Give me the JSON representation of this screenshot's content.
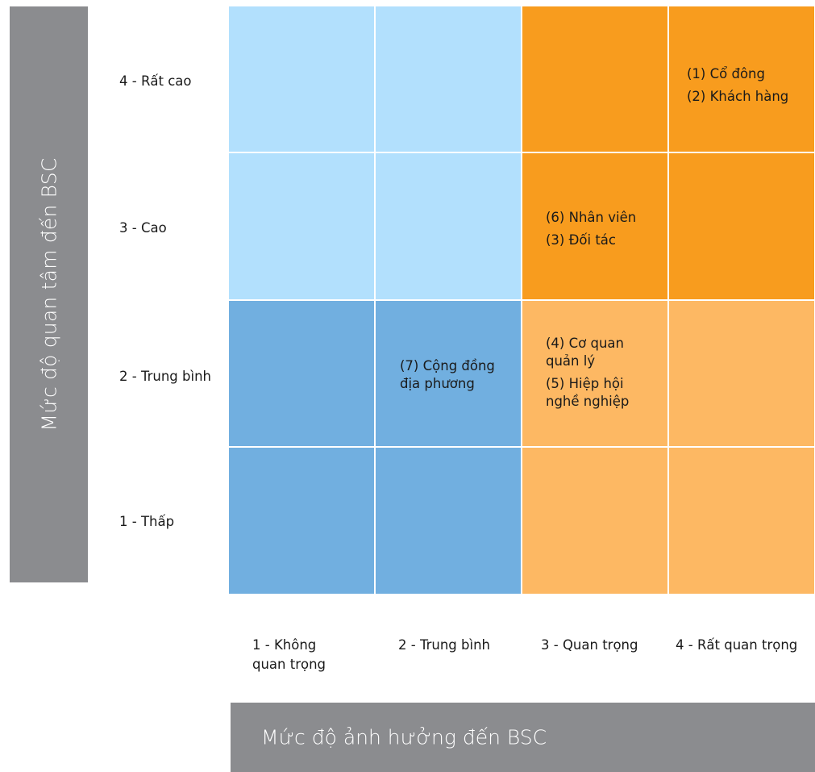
{
  "y_axis": {
    "title": "Mức độ quan tâm đến BSC"
  },
  "x_axis": {
    "title": "Mức độ ảnh hưởng đến BSC"
  },
  "rows": [
    {
      "label": "4 - Rất cao"
    },
    {
      "label": "3 - Cao"
    },
    {
      "label": "2 - Trung bình"
    },
    {
      "label": "1 - Thấp"
    }
  ],
  "columns": [
    {
      "label_line1": "1 - Không",
      "label_line2": "quan trọng"
    },
    {
      "label_line1": "2 - Trung bình",
      "label_line2": ""
    },
    {
      "label_line1": "3 - Quan trọng",
      "label_line2": ""
    },
    {
      "label_line1": "4 - Rất quan trọng",
      "label_line2": ""
    }
  ],
  "colors": {
    "light_blue": "#b2e0fd",
    "mid_blue": "#71afe0",
    "dark_orange": "#f89c1e",
    "light_orange": "#fdb863",
    "axis_band": "#8b8c8f"
  },
  "cells": {
    "r4c4": {
      "line1": "(1) Cổ đông",
      "line2": "(2) Khách hàng"
    },
    "r3c3": {
      "line1": "(6) Nhân viên",
      "line2": "(3) Đối tác"
    },
    "r2c2": {
      "line1": "(7) Cộng đồng",
      "line2": "địa phương"
    },
    "r2c3": {
      "line1": "(4) Cơ quan",
      "line2": "quản lý",
      "line3": "(5) Hiệp hội",
      "line4": "nghề nghiệp"
    }
  }
}
